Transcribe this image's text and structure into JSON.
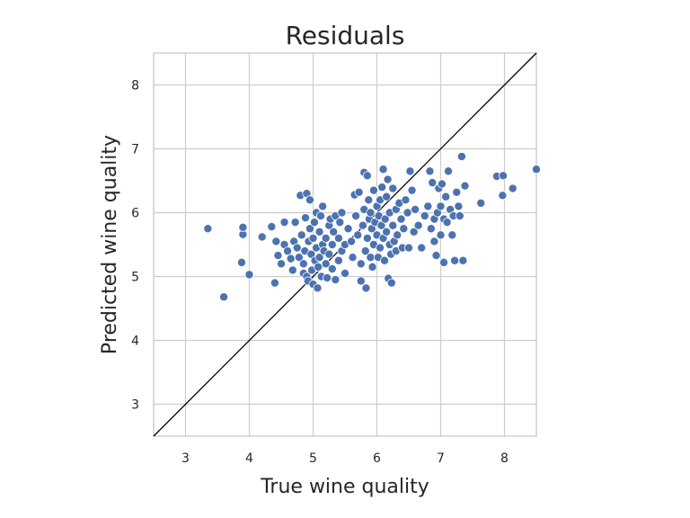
{
  "chart_data": {
    "type": "scatter",
    "title": "Residuals",
    "xlabel": "True wine quality",
    "ylabel": "Predicted wine quality",
    "xlim": [
      2.5,
      8.5
    ],
    "ylim": [
      2.5,
      8.5
    ],
    "xticks": [
      "3",
      "4",
      "5",
      "6",
      "7",
      "8"
    ],
    "yticks": [
      "3",
      "4",
      "5",
      "6",
      "7",
      "8"
    ],
    "xtick_values": [
      3,
      4,
      5,
      6,
      7,
      8
    ],
    "ytick_values": [
      3,
      4,
      5,
      6,
      7,
      8
    ],
    "grid": true,
    "reference_line": "y = x",
    "colors": {
      "points": "#4c72b0",
      "reference_line": "#000000",
      "grid": "#cccccc"
    },
    "points": [
      [
        3.35,
        5.75
      ],
      [
        3.6,
        4.68
      ],
      [
        3.88,
        5.22
      ],
      [
        3.9,
        5.66
      ],
      [
        3.9,
        5.77
      ],
      [
        4.0,
        5.03
      ],
      [
        4.2,
        5.62
      ],
      [
        4.35,
        5.78
      ],
      [
        4.4,
        4.9
      ],
      [
        4.42,
        5.55
      ],
      [
        4.45,
        5.33
      ],
      [
        4.5,
        5.2
      ],
      [
        4.55,
        5.5
      ],
      [
        4.55,
        5.85
      ],
      [
        4.6,
        5.4
      ],
      [
        4.65,
        5.28
      ],
      [
        4.68,
        5.1
      ],
      [
        4.7,
        5.55
      ],
      [
        4.72,
        5.85
      ],
      [
        4.75,
        5.45
      ],
      [
        4.78,
        5.3
      ],
      [
        4.8,
        6.27
      ],
      [
        4.82,
        5.65
      ],
      [
        4.85,
        5.05
      ],
      [
        4.85,
        5.2
      ],
      [
        4.87,
        5.4
      ],
      [
        4.88,
        5.92
      ],
      [
        4.9,
        6.3
      ],
      [
        4.9,
        5.0
      ],
      [
        4.92,
        4.93
      ],
      [
        4.93,
        5.55
      ],
      [
        4.95,
        6.2
      ],
      [
        4.95,
        5.75
      ],
      [
        4.97,
        5.35
      ],
      [
        4.98,
        5.1
      ],
      [
        5.0,
        4.88
      ],
      [
        5.0,
        5.6
      ],
      [
        5.02,
        5.85
      ],
      [
        5.03,
        5.25
      ],
      [
        5.05,
        6.0
      ],
      [
        5.05,
        5.45
      ],
      [
        5.07,
        4.82
      ],
      [
        5.08,
        5.15
      ],
      [
        5.1,
        5.7
      ],
      [
        5.1,
        5.3
      ],
      [
        5.12,
        5.95
      ],
      [
        5.13,
        5.0
      ],
      [
        5.15,
        5.5
      ],
      [
        5.15,
        6.1
      ],
      [
        5.17,
        5.4
      ],
      [
        5.2,
        5.6
      ],
      [
        5.2,
        5.2
      ],
      [
        5.22,
        4.98
      ],
      [
        5.25,
        5.8
      ],
      [
        5.25,
        5.35
      ],
      [
        5.27,
        5.9
      ],
      [
        5.3,
        5.5
      ],
      [
        5.3,
        5.12
      ],
      [
        5.32,
        5.7
      ],
      [
        5.35,
        4.95
      ],
      [
        5.35,
        5.95
      ],
      [
        5.4,
        5.25
      ],
      [
        5.4,
        5.6
      ],
      [
        5.42,
        5.85
      ],
      [
        5.45,
        5.4
      ],
      [
        5.45,
        6.0
      ],
      [
        5.5,
        5.5
      ],
      [
        5.5,
        5.05
      ],
      [
        5.55,
        5.75
      ],
      [
        5.6,
        5.55
      ],
      [
        5.62,
        5.3
      ],
      [
        5.65,
        6.28
      ],
      [
        5.67,
        5.95
      ],
      [
        5.7,
        5.65
      ],
      [
        5.72,
        6.32
      ],
      [
        5.75,
        5.2
      ],
      [
        5.75,
        4.93
      ],
      [
        5.78,
        5.8
      ],
      [
        5.8,
        6.63
      ],
      [
        5.8,
        6.05
      ],
      [
        5.82,
        5.4
      ],
      [
        5.83,
        4.82
      ],
      [
        5.85,
        6.58
      ],
      [
        5.85,
        5.6
      ],
      [
        5.87,
        6.2
      ],
      [
        5.88,
        5.9
      ],
      [
        5.9,
        5.3
      ],
      [
        5.9,
        6.0
      ],
      [
        5.92,
        5.75
      ],
      [
        5.93,
        5.15
      ],
      [
        5.95,
        6.35
      ],
      [
        5.95,
        5.5
      ],
      [
        5.97,
        5.85
      ],
      [
        6.0,
        6.1
      ],
      [
        6.0,
        5.65
      ],
      [
        6.02,
        5.3
      ],
      [
        6.03,
        5.95
      ],
      [
        6.05,
        6.2
      ],
      [
        6.05,
        5.45
      ],
      [
        6.07,
        5.8
      ],
      [
        6.08,
        6.4
      ],
      [
        6.1,
        5.6
      ],
      [
        6.1,
        6.68
      ],
      [
        6.12,
        5.25
      ],
      [
        6.13,
        5.9
      ],
      [
        6.15,
        6.25
      ],
      [
        6.15,
        5.7
      ],
      [
        6.17,
        6.52
      ],
      [
        6.18,
        4.97
      ],
      [
        6.2,
        5.5
      ],
      [
        6.2,
        6.0
      ],
      [
        6.22,
        5.35
      ],
      [
        6.23,
        4.9
      ],
      [
        6.25,
        6.38
      ],
      [
        6.25,
        5.8
      ],
      [
        6.27,
        5.55
      ],
      [
        6.3,
        6.05
      ],
      [
        6.3,
        5.4
      ],
      [
        6.32,
        5.65
      ],
      [
        6.35,
        6.15
      ],
      [
        6.38,
        5.9
      ],
      [
        6.4,
        5.45
      ],
      [
        6.42,
        5.75
      ],
      [
        6.45,
        6.2
      ],
      [
        6.48,
        6.0
      ],
      [
        6.5,
        5.45
      ],
      [
        6.52,
        6.65
      ],
      [
        6.55,
        6.35
      ],
      [
        6.58,
        5.7
      ],
      [
        6.6,
        6.05
      ],
      [
        6.65,
        5.8
      ],
      [
        6.7,
        5.45
      ],
      [
        6.75,
        5.95
      ],
      [
        6.8,
        6.1
      ],
      [
        6.83,
        6.65
      ],
      [
        6.85,
        5.75
      ],
      [
        6.87,
        6.47
      ],
      [
        6.9,
        5.55
      ],
      [
        6.9,
        5.9
      ],
      [
        6.93,
        5.33
      ],
      [
        6.95,
        6.0
      ],
      [
        6.97,
        6.38
      ],
      [
        7.0,
        5.65
      ],
      [
        7.0,
        6.1
      ],
      [
        7.02,
        6.45
      ],
      [
        7.05,
        5.22
      ],
      [
        7.05,
        5.9
      ],
      [
        7.08,
        6.25
      ],
      [
        7.1,
        5.85
      ],
      [
        7.12,
        6.65
      ],
      [
        7.15,
        6.05
      ],
      [
        7.18,
        5.65
      ],
      [
        7.2,
        5.95
      ],
      [
        7.22,
        5.25
      ],
      [
        7.25,
        6.32
      ],
      [
        7.28,
        6.1
      ],
      [
        7.3,
        5.95
      ],
      [
        7.33,
        6.88
      ],
      [
        7.35,
        5.25
      ],
      [
        7.38,
        6.42
      ],
      [
        7.63,
        6.15
      ],
      [
        7.88,
        6.57
      ],
      [
        7.98,
        6.58
      ],
      [
        7.97,
        6.27
      ],
      [
        8.13,
        6.38
      ],
      [
        8.5,
        6.68
      ]
    ]
  }
}
